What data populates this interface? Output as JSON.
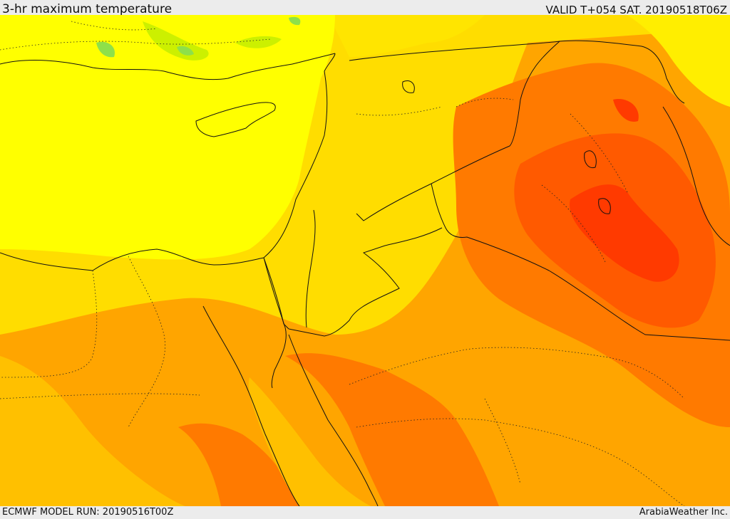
{
  "header": {
    "title": "3-hr maximum temperature",
    "valid": "VALID T+054 SAT. 20190518T06Z"
  },
  "footer": {
    "model_run": "ECMWF MODEL RUN: 20190516T00Z",
    "credit": "ArabiaWeather Inc."
  },
  "colors": {
    "cool_green": "#8ee04a",
    "yellow_green": "#ccf000",
    "yellow": "#ffff00",
    "gold": "#ffdd00",
    "light_orange": "#ffc000",
    "orange": "#ffa500",
    "dark_orange": "#ff7a00",
    "red_orange": "#ff5a00",
    "red": "#ff3a00",
    "border_line": "#111111"
  }
}
